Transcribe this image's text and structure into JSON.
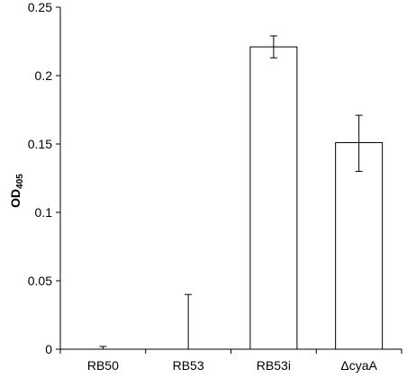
{
  "chart_data": {
    "type": "bar",
    "title": "",
    "xlabel": "",
    "ylabel": "OD",
    "ylabel_subscript": "405",
    "categories": [
      "RB50",
      "RB53",
      "RB53i",
      "ΔcyaA"
    ],
    "values": [
      0.0,
      0.0,
      0.221,
      0.151
    ],
    "error_upper": [
      0.002,
      0.04,
      0.008,
      0.02
    ],
    "error_lower": [
      0.0,
      0.0,
      0.008,
      0.021
    ],
    "ylim": [
      0,
      0.25
    ],
    "yticks": [
      0,
      0.05,
      0.1,
      0.15,
      0.2,
      0.25
    ],
    "ytick_labels": [
      "0",
      "0.05",
      "0.1",
      "0.15",
      "0.2",
      "0.25"
    ],
    "grid": false,
    "legend": "none",
    "colors": {
      "bar_fill": "#ffffff",
      "bar_stroke": "#000000",
      "axis": "#000000"
    }
  }
}
